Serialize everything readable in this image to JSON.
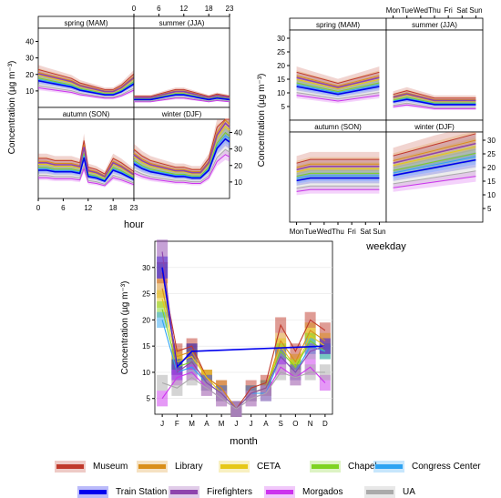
{
  "chart_data": [
    {
      "type": "line",
      "panel_group": "hour",
      "xlabel": "hour",
      "ylabel": "Concentration (µg m⁻³)",
      "x_ticks": [
        0,
        6,
        12,
        18,
        23
      ],
      "y_ticks_left": [
        10,
        20,
        30,
        40
      ],
      "y_ticks_right": [
        10,
        20,
        30,
        40
      ],
      "ylim": [
        0,
        48
      ],
      "panels": [
        {
          "title": "spring (MAM)",
          "x": [
            0,
            2,
            4,
            6,
            8,
            10,
            12,
            14,
            16,
            18,
            20,
            23
          ],
          "values": [
            17,
            16,
            15,
            14,
            13,
            11,
            10,
            9,
            8,
            8,
            10,
            15
          ]
        },
        {
          "title": "summer (JJA)",
          "x": [
            0,
            2,
            4,
            6,
            8,
            10,
            12,
            14,
            16,
            18,
            20,
            23
          ],
          "values": [
            5,
            5,
            5,
            6,
            7,
            8,
            8,
            7,
            6,
            5,
            6,
            5
          ]
        },
        {
          "title": "autumn (SON)",
          "x": [
            0,
            2,
            4,
            6,
            8,
            10,
            11,
            12,
            14,
            16,
            18,
            20,
            23
          ],
          "values": [
            18,
            18,
            17,
            17,
            17,
            16,
            26,
            14,
            13,
            11,
            18,
            16,
            12
          ]
        },
        {
          "title": "winter (DJF)",
          "x": [
            0,
            2,
            4,
            6,
            8,
            10,
            12,
            14,
            16,
            18,
            20,
            22,
            23
          ],
          "values": [
            22,
            19,
            17,
            16,
            15,
            14,
            14,
            13,
            13,
            18,
            32,
            38,
            36
          ]
        }
      ]
    },
    {
      "type": "line",
      "panel_group": "weekday",
      "xlabel": "weekday",
      "ylabel": "Concentration (µg m⁻³)",
      "categories": [
        "Mon",
        "Tue",
        "Wed",
        "Thu",
        "Fri",
        "Sat",
        "Sun"
      ],
      "y_ticks_left": [
        5,
        10,
        15,
        20,
        25,
        30
      ],
      "y_ticks_right": [
        5,
        10,
        15,
        20,
        25,
        30
      ],
      "ylim": [
        0,
        33
      ],
      "panels": [
        {
          "title": "spring (MAM)",
          "values": [
            13,
            12,
            11,
            10,
            11,
            12,
            13
          ]
        },
        {
          "title": "summer (JJA)",
          "values": [
            7,
            8,
            7,
            6,
            6,
            6,
            6
          ]
        },
        {
          "title": "autumn (SON)",
          "values": [
            16,
            17,
            17,
            17,
            17,
            17,
            17
          ]
        },
        {
          "title": "winter (DJF)",
          "values": [
            18,
            19,
            20,
            21,
            22,
            23,
            24
          ]
        }
      ]
    },
    {
      "type": "line",
      "panel_group": "month",
      "xlabel": "month",
      "ylabel": "Concentration (µg m⁻³)",
      "categories": [
        "J",
        "F",
        "M",
        "A",
        "M",
        "J",
        "J",
        "A",
        "S",
        "O",
        "N",
        "D"
      ],
      "y_ticks": [
        5,
        10,
        15,
        20,
        25,
        30
      ],
      "ylim": [
        2,
        35
      ],
      "series": [
        {
          "name": "Museum",
          "values": [
            29,
            14,
            15,
            9,
            7,
            3,
            7,
            8,
            19,
            14,
            20,
            18
          ]
        },
        {
          "name": "Library",
          "values": [
            26,
            13,
            14,
            9,
            7,
            3,
            6,
            7,
            16,
            12,
            18,
            16
          ]
        },
        {
          "name": "CETA",
          "values": [
            24,
            12,
            13,
            9,
            6,
            3,
            6,
            7,
            15,
            11,
            17,
            15
          ]
        },
        {
          "name": "Chapel",
          "values": [
            22,
            11,
            12,
            8,
            6,
            3,
            6,
            7,
            14,
            11,
            16,
            14
          ]
        },
        {
          "name": "Congress Center",
          "values": [
            20,
            10,
            11,
            8,
            6,
            3,
            6,
            6,
            13,
            10,
            15,
            14
          ]
        },
        {
          "name": "Train Station",
          "values": [
            30,
            11,
            14,
            null,
            null,
            null,
            null,
            null,
            null,
            null,
            null,
            15
          ]
        },
        {
          "name": "Firefighters",
          "values": [
            33,
            10,
            12,
            8,
            6,
            3,
            6,
            7,
            13,
            10,
            14,
            15
          ]
        },
        {
          "name": "Morgados",
          "values": [
            5,
            9,
            10,
            7,
            5,
            3,
            5,
            6,
            11,
            9,
            11,
            8
          ]
        },
        {
          "name": "UA",
          "values": [
            8,
            7,
            9,
            7,
            5,
            3,
            5,
            6,
            10,
            9,
            10,
            10
          ]
        }
      ]
    }
  ],
  "colors": {
    "Museum": "#c0392b",
    "Library": "#d98e1a",
    "CETA": "#e6c817",
    "Chapel": "#7ed321",
    "Congress Center": "#2ea3f2",
    "Train Station": "#0000ee",
    "Firefighters": "#8e44ad",
    "Morgados": "#cc33ee",
    "UA": "#aaaaaa",
    "strip_bg": "#ffffff",
    "grid": "#e6e6e6"
  },
  "legend": {
    "items": [
      "Museum",
      "Library",
      "CETA",
      "Chapel",
      "Congress Center",
      "Train Station",
      "Firefighters",
      "Morgados",
      "UA"
    ]
  }
}
